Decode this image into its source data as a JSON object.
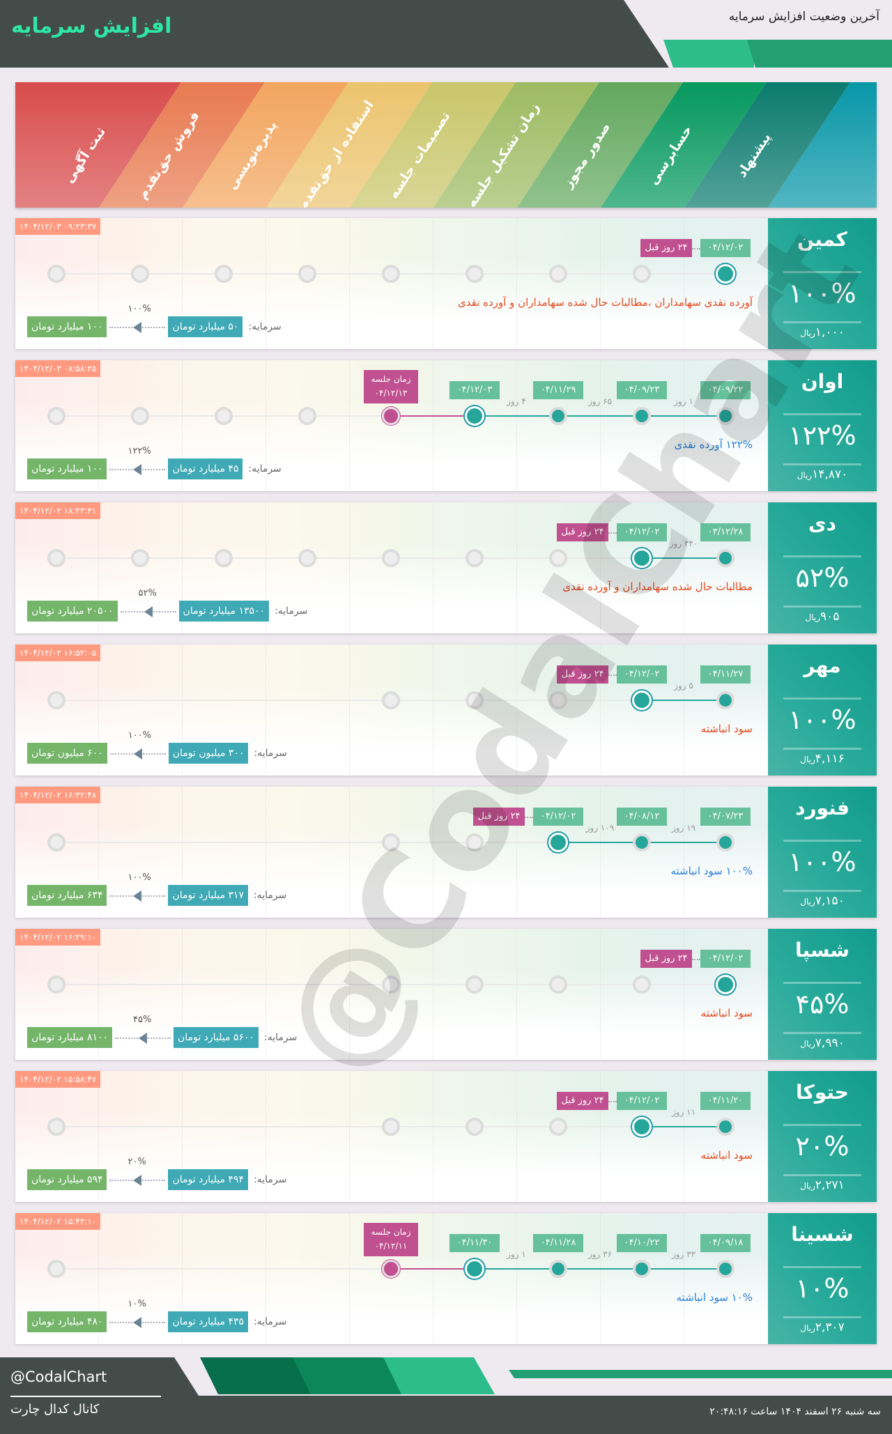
{
  "header": {
    "title": "افزایش سرمایه",
    "subtitle": "آخرین وضعیت افزایش سرمایه"
  },
  "stages": {
    "labels": [
      "پیشنهاد",
      "حسابرسی",
      "صدور مجوز",
      "زمان تشکیل جلسه",
      "تصمیمات جلسه",
      "استفاده از حق‌تقدم",
      "پذیره‌نویسی",
      "فروش حق‌تقدم",
      "ثبت آگهی"
    ],
    "colors": [
      "#0897a8",
      "#0a7a6e",
      "#05985e",
      "#62a85e",
      "#9dbb62",
      "#c9c66a",
      "#ecc46e",
      "#f2a55e",
      "#e87a50",
      "#d84c4c"
    ]
  },
  "colors": {
    "teal": "#26a69a",
    "pink": "#c0508f",
    "date_box": "#66c09c",
    "timestamp": "#ff9a80",
    "capital_from": "#3fa9b5",
    "capital_to": "#74b56a",
    "desc_red": "#e04a1f",
    "desc_blue": "#2a7fd4"
  },
  "capital_label": "سرمایه:",
  "price_unit": "ریال",
  "rows": [
    {
      "symbol": "کمین",
      "percent": "۱۰۰%",
      "price": "۱,۰۰۰",
      "timestamp": "۱۴۰۴/۱۲/۰۳ ۰۹:۲۳:۳۷",
      "nodes": [
        "current",
        "inactive",
        "inactive",
        "inactive",
        "inactive",
        "inactive",
        "inactive",
        "inactive",
        "inactive"
      ],
      "dates": [
        "۰۴/۱۲/۰۲"
      ],
      "gaps": [],
      "days_ago": "۲۴ روز قبل",
      "meeting": null,
      "description": "آورده نقدی سهامداران ،مطالبات حال شده سهامداران و آورده نقدی",
      "description_color": "#e04a1f",
      "capital_from": "۵۰ میلیارد تومان",
      "capital_to": "۱۰۰ میلیارد تومان",
      "increase": "۱۰۰%"
    },
    {
      "symbol": "اوان",
      "percent": "۱۲۲%",
      "price": "۱۴,۸۷۰",
      "timestamp": "۱۴۰۴/۱۲/۰۳ ۰۸:۵۸:۲۵",
      "nodes": [
        "active",
        "active",
        "active",
        "current",
        "meeting",
        "inactive",
        "inactive",
        "inactive",
        "inactive"
      ],
      "dates": [
        "۰۴/۰۹/۲۲",
        "۰۴/۰۹/۲۳",
        "۰۴/۱۱/۲۹",
        "۰۴/۱۲/۰۳"
      ],
      "gaps": [
        "۱ روز",
        "۶۵ روز",
        "۴ روز"
      ],
      "days_ago": null,
      "meeting": {
        "label": "زمان جلسه",
        "date": "۰۴/۱۲/۱۳"
      },
      "description": "۱۲۲% آورده نقدی",
      "description_color": "#2a7fd4",
      "capital_from": "۴۵ میلیارد تومان",
      "capital_to": "۱۰۰ میلیارد تومان",
      "increase": "۱۲۲%"
    },
    {
      "symbol": "دی",
      "percent": "۵۲%",
      "price": "۹۰۵",
      "timestamp": "۱۴۰۴/۱۲/۰۲ ۱۸:۲۳:۳۱",
      "nodes": [
        "active",
        "current",
        "inactive",
        "inactive",
        "inactive",
        "inactive",
        "inactive",
        "inactive",
        "inactive"
      ],
      "dates": [
        "۰۳/۱۲/۲۸",
        "۰۴/۱۲/۰۲"
      ],
      "gaps": [
        "۳۴۰ روز"
      ],
      "days_ago": "۲۴ روز قبل",
      "meeting": null,
      "description": "مطالبات حال شده سهامداران و آورده نقدی",
      "description_color": "#e04a1f",
      "capital_from": "۱۳۵۰۰ میلیارد تومان",
      "capital_to": "۲۰۵۰۰ میلیارد تومان",
      "increase": "۵۲%"
    },
    {
      "symbol": "مهر",
      "percent": "۱۰۰%",
      "price": "۴,۱۱۶",
      "timestamp": "۱۴۰۴/۱۲/۰۲ ۱۶:۵۲:۰۵",
      "nodes": [
        "active",
        "current",
        "inactive",
        "inactive",
        "inactive",
        "hidden",
        "hidden",
        "hidden",
        "inactive"
      ],
      "dates": [
        "۰۴/۱۱/۲۷",
        "۰۴/۱۲/۰۲"
      ],
      "gaps": [
        "۵ روز"
      ],
      "days_ago": "۲۴ روز قبل",
      "meeting": null,
      "description": "سود انباشته",
      "description_color": "#e04a1f",
      "capital_from": "۳۰۰ میلیون تومان",
      "capital_to": "۶۰۰ میلیون تومان",
      "increase": "۱۰۰%"
    },
    {
      "symbol": "فنورد",
      "percent": "۱۰۰%",
      "price": "۷,۱۵۰",
      "timestamp": "۱۴۰۴/۱۲/۰۲ ۱۶:۳۲:۴۸",
      "nodes": [
        "active",
        "active",
        "current",
        "inactive",
        "inactive",
        "hidden",
        "hidden",
        "hidden",
        "inactive"
      ],
      "dates": [
        "۰۴/۰۷/۲۳",
        "۰۴/۰۸/۱۲",
        "۰۴/۱۲/۰۲"
      ],
      "gaps": [
        "۱۹ روز",
        "۱۰۹ روز"
      ],
      "days_ago": "۲۴ روز قبل",
      "meeting": null,
      "description": "۱۰۰% سود انباشته",
      "description_color": "#2a7fd4",
      "capital_from": "۳۱۷ میلیارد تومان",
      "capital_to": "۶۳۴ میلیارد تومان",
      "increase": "۱۰۰%"
    },
    {
      "symbol": "شسپا",
      "percent": "۴۵%",
      "price": "۷,۹۹۰",
      "timestamp": "۱۴۰۴/۱۲/۰۲ ۱۶:۲۹:۱۰",
      "nodes": [
        "current",
        "inactive",
        "inactive",
        "inactive",
        "inactive",
        "hidden",
        "hidden",
        "hidden",
        "inactive"
      ],
      "dates": [
        "۰۴/۱۲/۰۲"
      ],
      "gaps": [],
      "days_ago": "۲۴ روز قبل",
      "meeting": null,
      "description": "سود انباشته",
      "description_color": "#e04a1f",
      "capital_from": "۵۶۰۰ میلیارد تومان",
      "capital_to": "۸۱۰۰ میلیارد تومان",
      "increase": "۴۵%"
    },
    {
      "symbol": "حتوکا",
      "percent": "۲۰%",
      "price": "۲,۲۷۱",
      "timestamp": "۱۴۰۴/۱۲/۰۲ ۱۵:۵۸:۴۷",
      "nodes": [
        "active",
        "current",
        "inactive",
        "inactive",
        "inactive",
        "hidden",
        "hidden",
        "hidden",
        "inactive"
      ],
      "dates": [
        "۰۴/۱۱/۲۰",
        "۰۴/۱۲/۰۲"
      ],
      "gaps": [
        "۱۱ روز"
      ],
      "days_ago": "۲۴ روز قبل",
      "meeting": null,
      "description": "سود انباشته",
      "description_color": "#e04a1f",
      "capital_from": "۴۹۴ میلیارد تومان",
      "capital_to": "۵۹۴ میلیارد تومان",
      "increase": "۲۰%"
    },
    {
      "symbol": "شسینا",
      "percent": "۱۰%",
      "price": "۲,۳۰۷",
      "timestamp": "۱۴۰۴/۱۲/۰۲ ۱۵:۴۳:۱۰",
      "nodes": [
        "active",
        "active",
        "active",
        "current",
        "meeting",
        "hidden",
        "hidden",
        "hidden",
        "inactive"
      ],
      "dates": [
        "۰۴/۰۹/۱۸",
        "۰۴/۱۰/۲۲",
        "۰۴/۱۱/۲۸",
        "۰۴/۱۱/۳۰"
      ],
      "gaps": [
        "۳۳ روز",
        "۳۶ روز",
        "۱ روز"
      ],
      "days_ago": null,
      "meeting": {
        "label": "زمان جلسه",
        "date": "۰۴/۱۲/۱۱"
      },
      "description": "۱۰% سود انباشته",
      "description_color": "#2a7fd4",
      "capital_from": "۴۳۵ میلیارد تومان",
      "capital_to": "۴۸۰ میلیارد تومان",
      "increase": "۱۰%"
    }
  ],
  "watermark": "@CodalChart",
  "footer": {
    "handle": "@CodalChart",
    "channel": "کانال کدال چارت",
    "datetime": "سه شنبه ۲۶ اسفند ۱۴۰۴ ساعت ۲۰:۴۸:۱۶"
  }
}
